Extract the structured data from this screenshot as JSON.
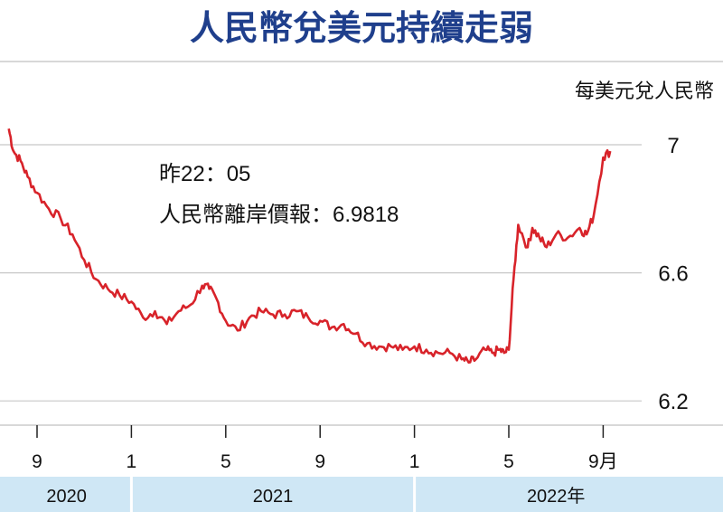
{
  "chart_data": {
    "type": "line",
    "title": "人民幣兌美元持續走弱",
    "ylabel": "每美元兌人民幣",
    "ylim": [
      6.1,
      7.05
    ],
    "yticks": [
      "7",
      "6.6",
      "6.2"
    ],
    "ytick_values": [
      7.0,
      6.6,
      6.2
    ],
    "xticks": [
      "9",
      "1",
      "5",
      "9",
      "1",
      "5",
      "9月"
    ],
    "xtick_positions": [
      8.0,
      12.0,
      16.0,
      20.0,
      24.0,
      28.0,
      32.0
    ],
    "years": [
      {
        "label": "2020",
        "from": 6.5,
        "to": 12.0
      },
      {
        "label": "2021",
        "from": 12.0,
        "to": 24.0
      },
      {
        "label": "2022年",
        "from": 24.0,
        "to": 36.0
      }
    ],
    "annotation": {
      "time_line": "昨22：05",
      "value_line": "人民幣離岸價報：6.9818"
    },
    "grid": true,
    "x": [
      6.8,
      7.0,
      7.3,
      7.6,
      8.0,
      8.5,
      9.0,
      9.5,
      10.0,
      10.5,
      11.0,
      11.5,
      12.0,
      12.5,
      13.0,
      13.5,
      14.0,
      14.5,
      15.0,
      15.3,
      15.6,
      16.0,
      16.5,
      17.0,
      17.5,
      18.0,
      18.5,
      19.0,
      19.5,
      20.0,
      20.5,
      21.0,
      21.5,
      22.0,
      22.5,
      23.0,
      23.5,
      24.0,
      24.5,
      25.0,
      25.5,
      26.0,
      26.3,
      26.6,
      27.0,
      27.3,
      27.6,
      27.8,
      28.0,
      28.2,
      28.4,
      28.8,
      29.0,
      29.3,
      29.6,
      30.0,
      30.5,
      31.0,
      31.3,
      31.6,
      32.0,
      32.3
    ],
    "values": [
      7.05,
      6.98,
      6.95,
      6.9,
      6.85,
      6.8,
      6.77,
      6.72,
      6.64,
      6.58,
      6.55,
      6.53,
      6.51,
      6.46,
      6.48,
      6.44,
      6.48,
      6.5,
      6.56,
      6.55,
      6.52,
      6.45,
      6.42,
      6.46,
      6.48,
      6.47,
      6.47,
      6.48,
      6.46,
      6.45,
      6.43,
      6.44,
      6.41,
      6.38,
      6.37,
      6.37,
      6.36,
      6.37,
      6.36,
      6.35,
      6.35,
      6.33,
      6.32,
      6.33,
      6.36,
      6.35,
      6.36,
      6.35,
      6.36,
      6.58,
      6.75,
      6.68,
      6.74,
      6.71,
      6.68,
      6.72,
      6.71,
      6.74,
      6.72,
      6.78,
      6.96,
      6.98
    ]
  }
}
